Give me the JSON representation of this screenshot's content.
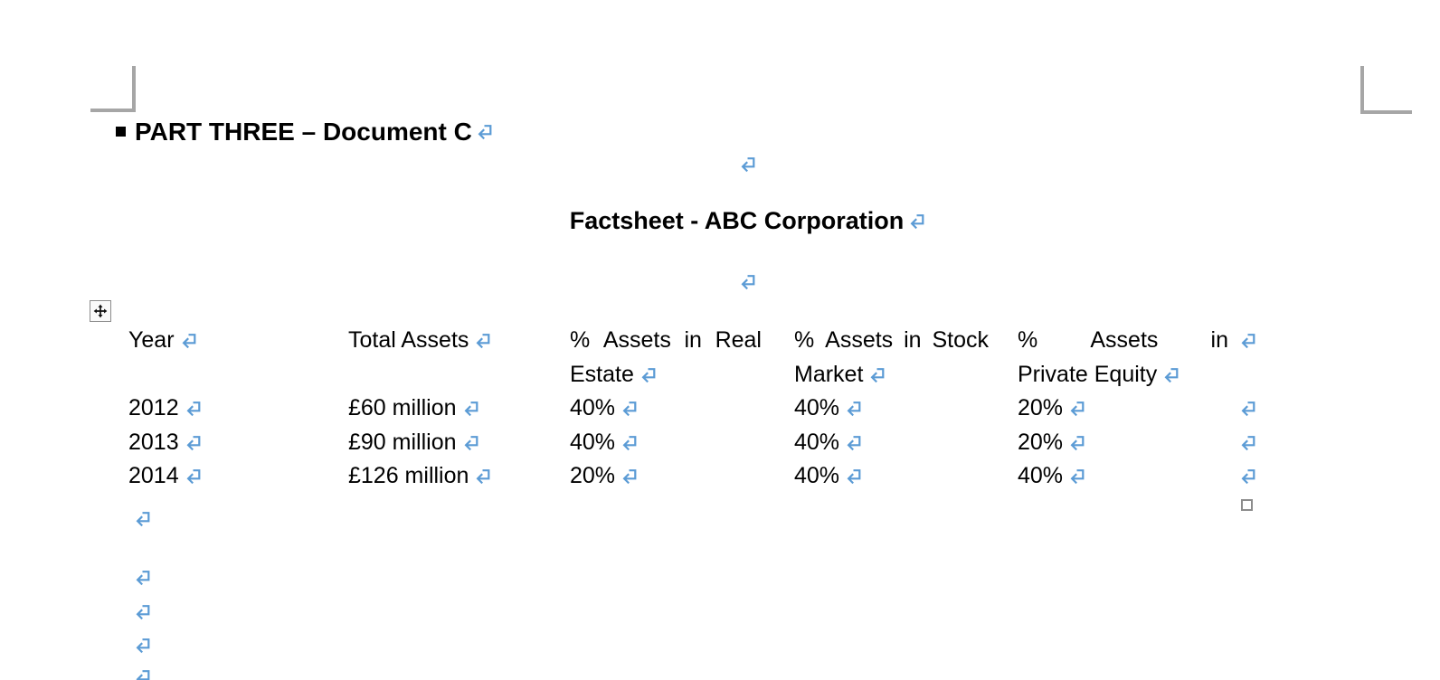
{
  "document": {
    "heading": {
      "bullet": "■",
      "text": "PART THREE – Document C"
    },
    "title": "Factsheet - ABC Corporation",
    "table": {
      "headers": [
        {
          "lines": [
            "Year"
          ]
        },
        {
          "lines": [
            "Total Assets"
          ]
        },
        {
          "lines": [
            "% Assets in Real",
            "Estate"
          ]
        },
        {
          "lines": [
            "% Assets in Stock",
            "Market"
          ]
        },
        {
          "lines": [
            "% Assets in",
            "Private Equity"
          ]
        }
      ],
      "rows": [
        [
          "2012",
          "£60 million",
          "40%",
          "40%",
          "20%"
        ],
        [
          "2013",
          "£90 million",
          "40%",
          "40%",
          "20%"
        ],
        [
          "2014",
          "£126 million",
          "20%",
          "40%",
          "40%"
        ]
      ]
    },
    "colors": {
      "formatting_mark": "#5B9BD5",
      "crop_mark": "#A6A6A6",
      "text": "#000000",
      "handle_gray": "#8C8C8C"
    }
  }
}
